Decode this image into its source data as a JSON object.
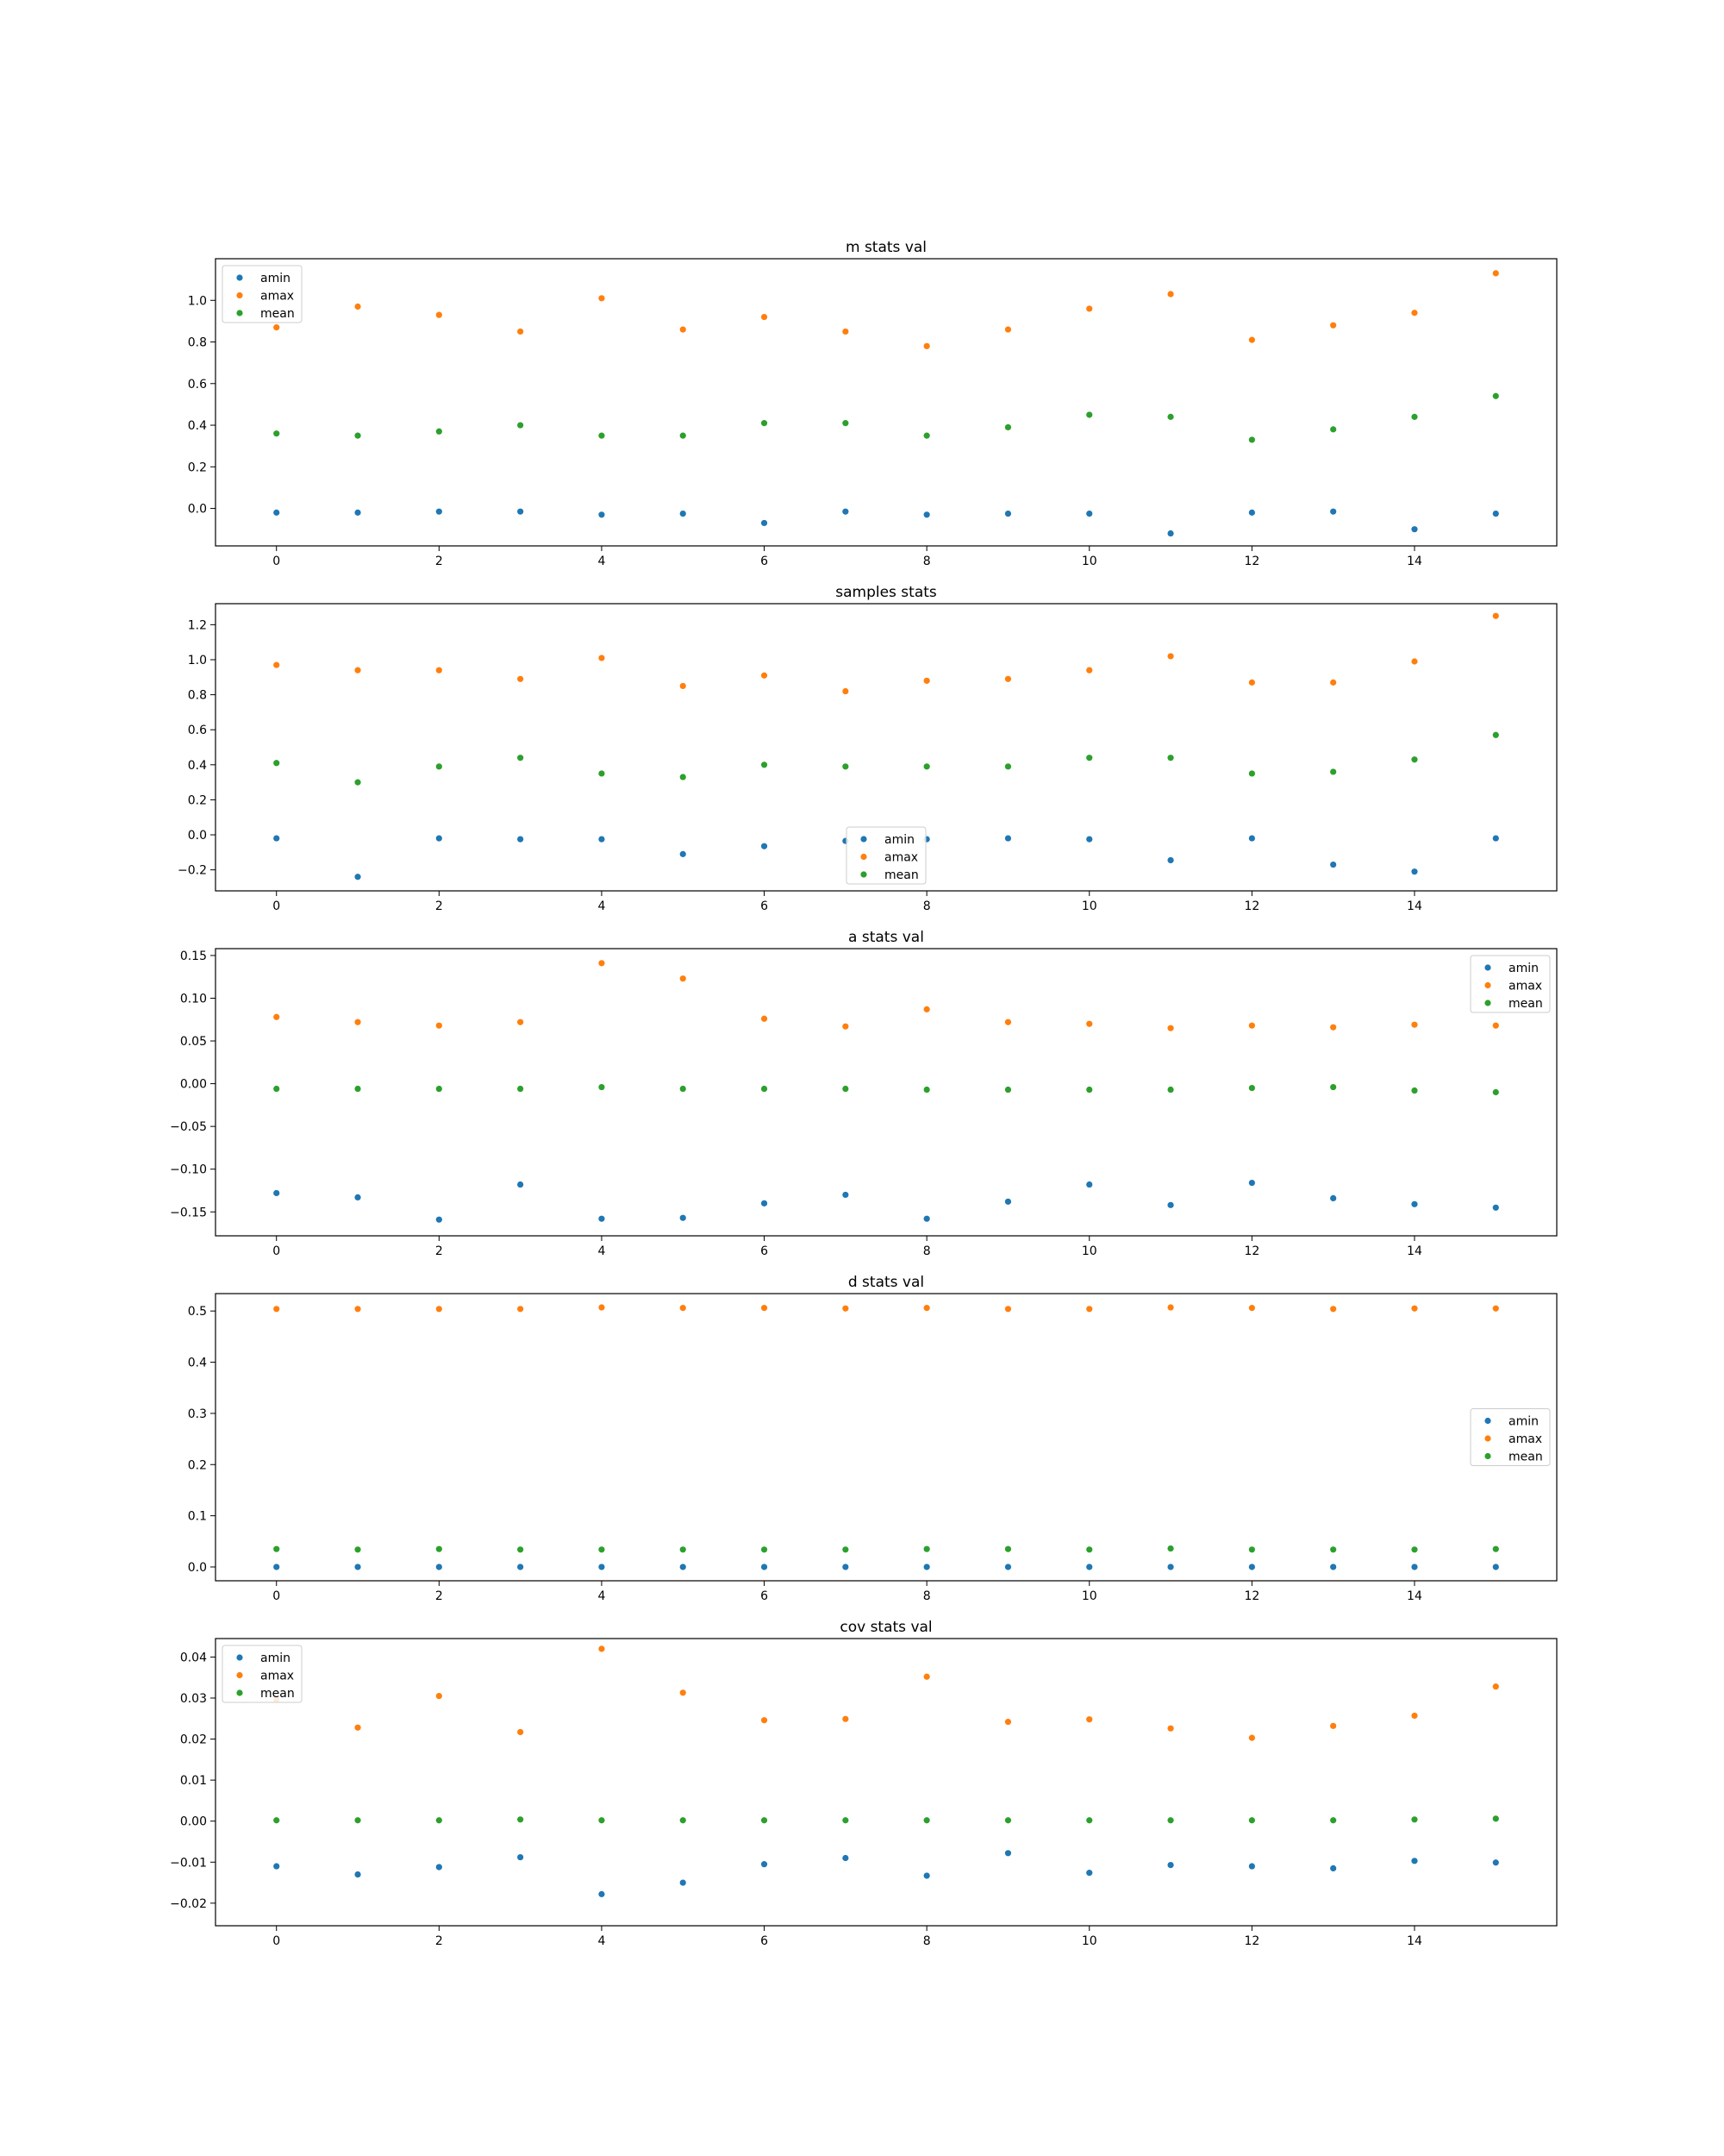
{
  "colors": {
    "amin": "#1f77b4",
    "amax": "#ff7f0e",
    "mean": "#2ca02c"
  },
  "chart_data": [
    {
      "type": "scatter",
      "title": "m stats val",
      "x": [
        0,
        1,
        2,
        3,
        4,
        5,
        6,
        7,
        8,
        9,
        10,
        11,
        12,
        13,
        14,
        15
      ],
      "xlim": [
        -0.75,
        15.75
      ],
      "xticks": [
        0,
        2,
        4,
        6,
        8,
        10,
        12,
        14
      ],
      "ylim": [
        -0.18,
        1.2
      ],
      "yticks": [
        0.0,
        0.2,
        0.4,
        0.6,
        0.8,
        1.0
      ],
      "ytick_labels": [
        "0.0",
        "0.2",
        "0.4",
        "0.6",
        "0.8",
        "1.0"
      ],
      "legend": "upper left",
      "series": [
        {
          "name": "amin",
          "values": [
            -0.02,
            -0.02,
            -0.015,
            -0.015,
            -0.03,
            -0.025,
            -0.07,
            -0.015,
            -0.03,
            -0.025,
            -0.025,
            -0.12,
            -0.02,
            -0.015,
            -0.1,
            -0.025
          ]
        },
        {
          "name": "amax",
          "values": [
            0.87,
            0.97,
            0.93,
            0.85,
            1.01,
            0.86,
            0.92,
            0.85,
            0.78,
            0.86,
            0.96,
            1.03,
            0.81,
            0.88,
            0.94,
            1.13
          ]
        },
        {
          "name": "mean",
          "values": [
            0.36,
            0.35,
            0.37,
            0.4,
            0.35,
            0.35,
            0.41,
            0.41,
            0.35,
            0.39,
            0.45,
            0.44,
            0.33,
            0.38,
            0.44,
            0.54
          ]
        }
      ]
    },
    {
      "type": "scatter",
      "title": "samples stats",
      "x": [
        0,
        1,
        2,
        3,
        4,
        5,
        6,
        7,
        8,
        9,
        10,
        11,
        12,
        13,
        14,
        15
      ],
      "xlim": [
        -0.75,
        15.75
      ],
      "xticks": [
        0,
        2,
        4,
        6,
        8,
        10,
        12,
        14
      ],
      "ylim": [
        -0.32,
        1.32
      ],
      "yticks": [
        -0.2,
        0.0,
        0.2,
        0.4,
        0.6,
        0.8,
        1.0,
        1.2
      ],
      "ytick_labels": [
        "−0.2",
        "0.0",
        "0.2",
        "0.4",
        "0.6",
        "0.8",
        "1.0",
        "1.2"
      ],
      "legend": "lower center",
      "series": [
        {
          "name": "amin",
          "values": [
            -0.02,
            -0.24,
            -0.02,
            -0.025,
            -0.025,
            -0.11,
            -0.065,
            -0.035,
            -0.025,
            -0.02,
            -0.025,
            -0.145,
            -0.02,
            -0.17,
            -0.21,
            -0.02
          ]
        },
        {
          "name": "amax",
          "values": [
            0.97,
            0.94,
            0.94,
            0.89,
            1.01,
            0.85,
            0.91,
            0.82,
            0.88,
            0.89,
            0.94,
            1.02,
            0.87,
            0.87,
            0.99,
            1.25
          ]
        },
        {
          "name": "mean",
          "values": [
            0.41,
            0.3,
            0.39,
            0.44,
            0.35,
            0.33,
            0.4,
            0.39,
            0.39,
            0.39,
            0.44,
            0.44,
            0.35,
            0.36,
            0.43,
            0.57
          ]
        }
      ]
    },
    {
      "type": "scatter",
      "title": "a stats val",
      "x": [
        0,
        1,
        2,
        3,
        4,
        5,
        6,
        7,
        8,
        9,
        10,
        11,
        12,
        13,
        14,
        15
      ],
      "xlim": [
        -0.75,
        15.75
      ],
      "xticks": [
        0,
        2,
        4,
        6,
        8,
        10,
        12,
        14
      ],
      "ylim": [
        -0.178,
        0.158
      ],
      "yticks": [
        -0.15,
        -0.1,
        -0.05,
        0.0,
        0.05,
        0.1,
        0.15
      ],
      "ytick_labels": [
        "−0.15",
        "−0.10",
        "−0.05",
        "0.00",
        "0.05",
        "0.10",
        "0.15"
      ],
      "legend": "upper right",
      "series": [
        {
          "name": "amin",
          "values": [
            -0.128,
            -0.133,
            -0.159,
            -0.118,
            -0.158,
            -0.157,
            -0.14,
            -0.13,
            -0.158,
            -0.138,
            -0.118,
            -0.142,
            -0.116,
            -0.134,
            -0.141,
            -0.145
          ]
        },
        {
          "name": "amax",
          "values": [
            0.078,
            0.072,
            0.068,
            0.072,
            0.141,
            0.123,
            0.076,
            0.067,
            0.087,
            0.072,
            0.07,
            0.065,
            0.068,
            0.066,
            0.069,
            0.068
          ]
        },
        {
          "name": "mean",
          "values": [
            -0.006,
            -0.006,
            -0.006,
            -0.006,
            -0.004,
            -0.006,
            -0.006,
            -0.006,
            -0.007,
            -0.007,
            -0.007,
            -0.007,
            -0.005,
            -0.004,
            -0.008,
            -0.01
          ]
        }
      ]
    },
    {
      "type": "scatter",
      "title": "d stats val",
      "x": [
        0,
        1,
        2,
        3,
        4,
        5,
        6,
        7,
        8,
        9,
        10,
        11,
        12,
        13,
        14,
        15
      ],
      "xlim": [
        -0.75,
        15.75
      ],
      "xticks": [
        0,
        2,
        4,
        6,
        8,
        10,
        12,
        14
      ],
      "ylim": [
        -0.027,
        0.534
      ],
      "yticks": [
        0.0,
        0.1,
        0.2,
        0.3,
        0.4,
        0.5
      ],
      "ytick_labels": [
        "0.0",
        "0.1",
        "0.2",
        "0.3",
        "0.4",
        "0.5"
      ],
      "legend": "center right",
      "series": [
        {
          "name": "amin",
          "values": [
            0.0,
            0.0,
            0.0,
            0.0,
            0.0,
            0.0,
            0.0,
            0.0,
            0.0,
            0.0,
            0.0,
            0.0,
            0.0,
            0.0,
            0.0,
            0.0
          ]
        },
        {
          "name": "amax",
          "values": [
            0.504,
            0.504,
            0.504,
            0.504,
            0.507,
            0.506,
            0.506,
            0.505,
            0.506,
            0.504,
            0.504,
            0.507,
            0.506,
            0.504,
            0.505,
            0.505
          ]
        },
        {
          "name": "mean",
          "values": [
            0.035,
            0.034,
            0.035,
            0.034,
            0.034,
            0.034,
            0.034,
            0.034,
            0.035,
            0.035,
            0.034,
            0.036,
            0.034,
            0.034,
            0.034,
            0.035
          ]
        }
      ]
    },
    {
      "type": "scatter",
      "title": "cov stats val",
      "x": [
        0,
        1,
        2,
        3,
        4,
        5,
        6,
        7,
        8,
        9,
        10,
        11,
        12,
        13,
        14,
        15
      ],
      "xlim": [
        -0.75,
        15.75
      ],
      "xticks": [
        0,
        2,
        4,
        6,
        8,
        10,
        12,
        14
      ],
      "ylim": [
        -0.0255,
        0.0445
      ],
      "yticks": [
        -0.02,
        -0.01,
        0.0,
        0.01,
        0.02,
        0.03,
        0.04
      ],
      "ytick_labels": [
        "−0.02",
        "−0.01",
        "0.00",
        "0.01",
        "0.02",
        "0.03",
        "0.04"
      ],
      "legend": "upper left",
      "series": [
        {
          "name": "amin",
          "values": [
            -0.011,
            -0.013,
            -0.0112,
            -0.0088,
            -0.0178,
            -0.015,
            -0.0105,
            -0.009,
            -0.0133,
            -0.0078,
            -0.0126,
            -0.0107,
            -0.011,
            -0.0115,
            -0.0097,
            -0.0101
          ]
        },
        {
          "name": "amax",
          "values": [
            0.0296,
            0.0228,
            0.0305,
            0.0217,
            0.042,
            0.0313,
            0.0246,
            0.0249,
            0.0352,
            0.0242,
            0.0248,
            0.0226,
            0.0203,
            0.0232,
            0.0257,
            0.0328
          ]
        },
        {
          "name": "mean",
          "values": [
            0.0002,
            0.0002,
            0.0002,
            0.0004,
            0.0002,
            0.0002,
            0.0002,
            0.0002,
            0.0002,
            0.0002,
            0.0002,
            0.0002,
            0.0002,
            0.0002,
            0.0004,
            0.0006
          ]
        }
      ]
    }
  ]
}
